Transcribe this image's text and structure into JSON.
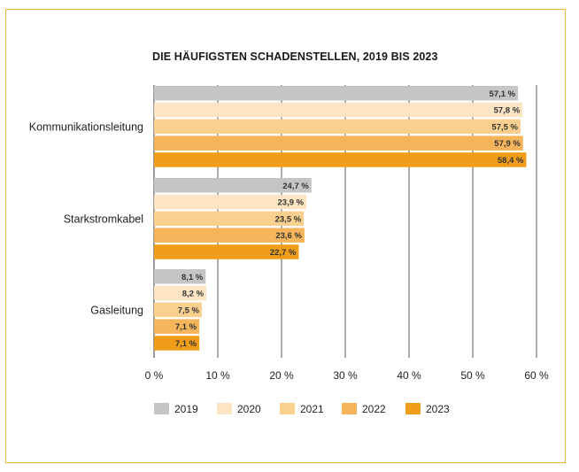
{
  "chart_data": {
    "type": "bar",
    "orientation": "horizontal",
    "title": "DIE HÄUFIGSTEN SCHADENSTELLEN, 2019 BIS 2023",
    "categories": [
      "Kommunikationsleitung",
      "Starkstromkabel",
      "Gasleitung"
    ],
    "series": [
      {
        "name": "2019",
        "color": "#c4c6c5",
        "values": [
          57.1,
          24.7,
          8.1
        ],
        "labels": [
          "57,1 %",
          "24,7 %",
          "8,1 %"
        ]
      },
      {
        "name": "2020",
        "color": "#fde5c4",
        "values": [
          57.8,
          23.9,
          8.2
        ],
        "labels": [
          "57,8 %",
          "23,9 %",
          "8,2 %"
        ]
      },
      {
        "name": "2021",
        "color": "#fbd08f",
        "values": [
          57.5,
          23.5,
          7.5
        ],
        "labels": [
          "57,5 %",
          "23,5 %",
          "7,5 %"
        ]
      },
      {
        "name": "2022",
        "color": "#f6b55a",
        "values": [
          57.9,
          23.6,
          7.1
        ],
        "labels": [
          "57,9 %",
          "23,6 %",
          "7,1 %"
        ]
      },
      {
        "name": "2023",
        "color": "#f09e1a",
        "values": [
          58.4,
          22.7,
          7.1
        ],
        "labels": [
          "58,4 %",
          "22,7 %",
          "7,1 %"
        ]
      }
    ],
    "xlim": [
      0,
      60
    ],
    "xticks": [
      0,
      10,
      20,
      30,
      40,
      50,
      60
    ],
    "xtick_labels": [
      "0 %",
      "10 %",
      "20 %",
      "30 %",
      "40 %",
      "50 %",
      "60 %"
    ],
    "grid": true,
    "legend_position": "bottom"
  }
}
